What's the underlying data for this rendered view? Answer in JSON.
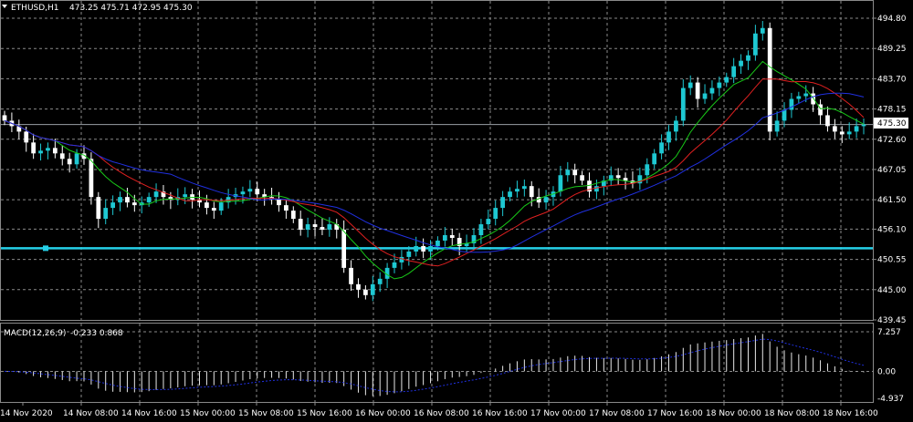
{
  "header": {
    "symbol": "ETHUSD,H1",
    "ohlc": "473.25 475.71 472.95 475.30"
  },
  "chart_data": [
    {
      "type": "candlestick",
      "title": "ETHUSD,H1",
      "y_ticks": [
        "494.80",
        "489.25",
        "483.70",
        "478.15",
        "472.60",
        "467.05",
        "461.50",
        "456.10",
        "450.55",
        "445.00",
        "439.45"
      ],
      "ylim": [
        439.45,
        494.8
      ],
      "current_price": "475.30",
      "horizontal_level": 452.6,
      "x_ticks": [
        "14 Nov 2020",
        "14 Nov 08:00",
        "14 Nov 16:00",
        "15 Nov 00:00",
        "15 Nov 08:00",
        "15 Nov 16:00",
        "16 Nov 00:00",
        "16 Nov 08:00",
        "16 Nov 16:00",
        "17 Nov 00:00",
        "17 Nov 08:00",
        "17 Nov 16:00",
        "18 Nov 00:00",
        "18 Nov 08:00",
        "18 Nov 16:00"
      ],
      "closes": [
        476,
        475,
        474,
        472,
        470,
        470.5,
        471,
        470,
        469,
        468,
        470,
        469,
        462,
        458,
        460,
        461,
        462,
        461,
        460.5,
        461,
        462,
        463,
        462,
        461.5,
        462,
        462.5,
        461.5,
        461,
        460,
        459.5,
        461,
        462,
        462.5,
        463,
        463.5,
        462.5,
        462,
        461.5,
        460.5,
        459.5,
        458,
        456,
        457,
        456.5,
        456,
        457,
        456,
        449,
        446,
        445,
        444,
        446,
        447,
        449,
        450,
        451,
        452,
        453,
        452,
        453,
        454,
        455,
        454.5,
        453,
        453.5,
        455,
        457,
        458,
        460,
        462,
        463,
        463.5,
        464,
        462,
        461,
        462,
        463,
        466,
        467,
        466,
        465,
        463,
        464,
        465,
        466,
        465.5,
        465,
        464.5,
        466,
        468,
        470,
        472,
        474,
        476,
        482,
        483,
        480,
        481,
        482,
        483,
        484,
        486,
        487,
        488,
        492,
        493,
        474,
        476,
        478,
        480,
        480.5,
        481,
        479,
        477,
        475,
        474,
        473.5,
        474,
        475,
        475.3
      ],
      "ma_fast_color": "#18c818",
      "ma_mid_color": "#e02020",
      "ma_slow_color": "#2030e0",
      "level_color": "#25d0e8",
      "bull_color": "#1ec8d2",
      "bear_color": "#ffffff"
    },
    {
      "type": "bar",
      "title": "MACD(12,26,9)",
      "readout": "-0.233 0.868",
      "y_ticks": [
        "7.257",
        "0.00",
        "-4.937"
      ],
      "ylim": [
        -4.937,
        7.257
      ]
    }
  ]
}
